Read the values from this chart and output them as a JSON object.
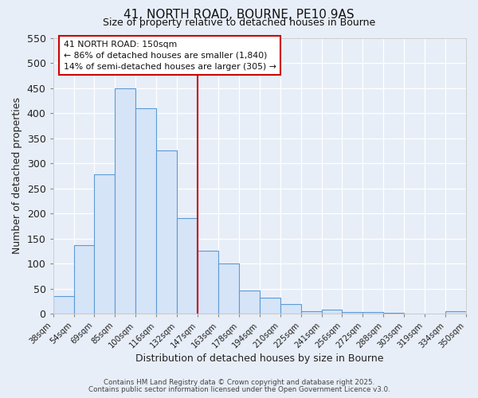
{
  "title": "41, NORTH ROAD, BOURNE, PE10 9AS",
  "subtitle": "Size of property relative to detached houses in Bourne",
  "xlabel": "Distribution of detached houses by size in Bourne",
  "ylabel": "Number of detached properties",
  "bar_labels": [
    "38sqm",
    "54sqm",
    "69sqm",
    "85sqm",
    "100sqm",
    "116sqm",
    "132sqm",
    "147sqm",
    "163sqm",
    "178sqm",
    "194sqm",
    "210sqm",
    "225sqm",
    "241sqm",
    "256sqm",
    "272sqm",
    "288sqm",
    "303sqm",
    "319sqm",
    "334sqm",
    "350sqm"
  ],
  "bar_values": [
    35,
    137,
    278,
    450,
    410,
    325,
    190,
    125,
    100,
    46,
    32,
    20,
    5,
    8,
    3,
    4,
    2,
    1,
    1,
    5
  ],
  "bar_color_fill": "#d6e4f7",
  "bar_color_edge": "#5b9bd5",
  "vline_label_index": 7,
  "vline_color": "#cc0000",
  "ylim": [
    0,
    550
  ],
  "yticks": [
    0,
    50,
    100,
    150,
    200,
    250,
    300,
    350,
    400,
    450,
    500,
    550
  ],
  "annotation_title": "41 NORTH ROAD: 150sqm",
  "annotation_line1": "← 86% of detached houses are smaller (1,840)",
  "annotation_line2": "14% of semi-detached houses are larger (305) →",
  "annotation_box_color": "#cc0000",
  "bg_color": "#e8eef8",
  "grid_color": "#ffffff",
  "footer1": "Contains HM Land Registry data © Crown copyright and database right 2025.",
  "footer2": "Contains public sector information licensed under the Open Government Licence v3.0."
}
